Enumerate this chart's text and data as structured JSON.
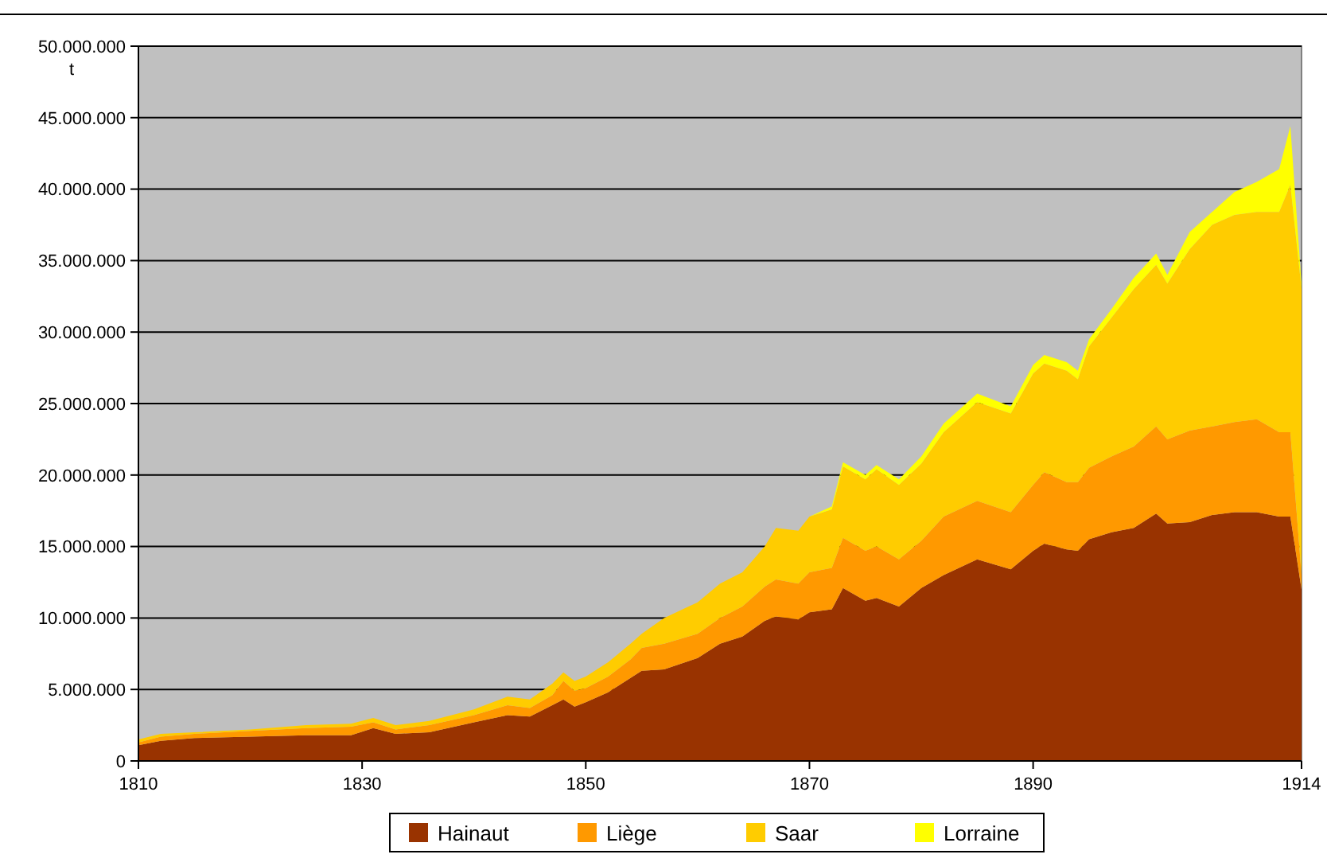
{
  "chart_data": {
    "type": "area",
    "stacked": true,
    "ylabel": "t",
    "x": [
      1810,
      1812,
      1815,
      1820,
      1825,
      1829,
      1831,
      1833,
      1836,
      1840,
      1843,
      1845,
      1847,
      1848,
      1849,
      1850,
      1852,
      1854,
      1855,
      1857,
      1860,
      1862,
      1864,
      1866,
      1867,
      1869,
      1870,
      1872,
      1873,
      1875,
      1876,
      1878,
      1880,
      1882,
      1885,
      1888,
      1890,
      1891,
      1893,
      1894,
      1895,
      1897,
      1899,
      1901,
      1902,
      1904,
      1906,
      1908,
      1910,
      1912,
      1913,
      1914
    ],
    "series": [
      {
        "name": "Hainaut",
        "color": "#993300",
        "values": [
          1100000.0,
          1400000.0,
          1600000.0,
          1700000.0,
          1800000.0,
          1800000.0,
          2300000.0,
          1900000.0,
          2000000.0,
          2700000.0,
          3200000.0,
          3100000.0,
          3900000.0,
          4300000.0,
          3800000.0,
          4100000.0,
          4800000.0,
          5800000.0,
          6300000.0,
          6400000.0,
          7200000.0,
          8200000.0,
          8700000.0,
          9800000.0,
          10100000.0,
          9900000.0,
          10400000.0,
          10600000.0,
          12100000.0,
          11200000.0,
          11400000.0,
          10800000.0,
          12100000.0,
          13000000.0,
          14100000.0,
          13400000.0,
          14700000.0,
          15200000.0,
          14800000.0,
          14700000.0,
          15500000.0,
          16000000.0,
          16300000.0,
          17300000.0,
          16600000.0,
          16700000.0,
          17200000.0,
          17400000.0,
          17400000.0,
          17100000.0,
          17100000.0,
          12000000.0
        ]
      },
      {
        "name": "Liège",
        "color": "#ff9900",
        "values": [
          200000.0,
          300000.0,
          300000.0,
          400000.0,
          500000.0,
          600000.0,
          400000.0,
          300000.0,
          500000.0,
          500000.0,
          700000.0,
          600000.0,
          700000.0,
          1300000.0,
          1100000.0,
          1000000.0,
          1100000.0,
          1300000.0,
          1600000.0,
          1800000.0,
          1700000.0,
          1800000.0,
          2100000.0,
          2400000.0,
          2600000.0,
          2500000.0,
          2800000.0,
          2900000.0,
          3500000.0,
          3500000.0,
          3600000.0,
          3300000.0,
          3300000.0,
          4100000.0,
          4100000.0,
          4000000.0,
          4600000.0,
          5000000.0,
          4700000.0,
          4800000.0,
          5000000.0,
          5300000.0,
          5700000.0,
          6100000.0,
          5900000.0,
          6400000.0,
          6200000.0,
          6300000.0,
          6500000.0,
          5900000.0,
          5900000.0,
          1000000.0
        ]
      },
      {
        "name": "Saar",
        "color": "#ffcc00",
        "values": [
          200000.0,
          200000.0,
          100000.0,
          100000.0,
          200000.0,
          200000.0,
          300000.0,
          300000.0,
          300000.0,
          400000.0,
          600000.0,
          600000.0,
          800000.0,
          600000.0,
          700000.0,
          800000.0,
          1000000.0,
          1100000.0,
          1000000.0,
          1800000.0,
          2200000.0,
          2400000.0,
          2400000.0,
          2800000.0,
          3600000.0,
          3700000.0,
          3900000.0,
          4100000.0,
          5000000.0,
          5000000.0,
          5400000.0,
          5200000.0,
          5400000.0,
          5900000.0,
          6900000.0,
          6900000.0,
          7800000.0,
          7600000.0,
          7800000.0,
          7200000.0,
          8500000.0,
          9700000.0,
          11000000.0,
          11300000.0,
          10900000.0,
          12700000.0,
          14100000.0,
          14500000.0,
          14500000.0,
          15400000.0,
          17300000.0,
          20000000.0
        ]
      },
      {
        "name": "Lorraine",
        "color": "#ffff00",
        "values": [
          0,
          0,
          0,
          0,
          0,
          0,
          0,
          0,
          0,
          0,
          0,
          0,
          0,
          0,
          0,
          0,
          0,
          0,
          0,
          0,
          0,
          0,
          0,
          0,
          0,
          0,
          0,
          200000.0,
          300000.0,
          300000.0,
          300000.0,
          400000.0,
          500000.0,
          600000.0,
          600000.0,
          500000.0,
          600000.0,
          600000.0,
          600000.0,
          600000.0,
          500000.0,
          600000.0,
          800000.0,
          800000.0,
          600000.0,
          1200000.0,
          900000.0,
          1600000.0,
          2100000.0,
          3000000.0,
          4100000.0,
          300000.0
        ]
      }
    ],
    "xlim": [
      1810,
      1914
    ],
    "xticks": [
      1810,
      1830,
      1850,
      1870,
      1890,
      1914
    ],
    "ylim": [
      0,
      50000000
    ],
    "yticks": [
      {
        "value": 0,
        "label": "0"
      },
      {
        "value": 5000000,
        "label": "5.000.000"
      },
      {
        "value": 10000000,
        "label": "10.000.000"
      },
      {
        "value": 15000000,
        "label": "15.000.000"
      },
      {
        "value": 20000000,
        "label": "20.000.000"
      },
      {
        "value": 25000000,
        "label": "25.000.000"
      },
      {
        "value": 30000000,
        "label": "30.000.000"
      },
      {
        "value": 35000000,
        "label": "35.000.000"
      },
      {
        "value": 40000000,
        "label": "40.000.000"
      },
      {
        "value": 45000000,
        "label": "45.000.000"
      },
      {
        "value": 50000000,
        "label": "50.000.000"
      }
    ],
    "grid": "y",
    "legend": "bottom"
  }
}
